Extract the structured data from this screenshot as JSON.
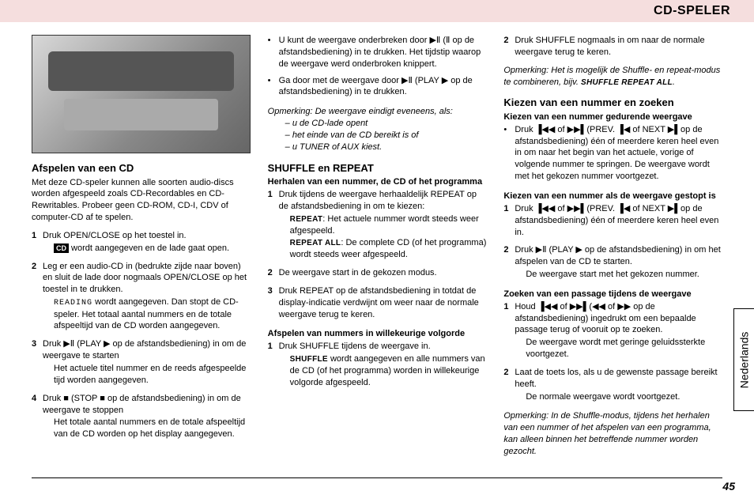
{
  "header": {
    "title": "CD-SPELER"
  },
  "lang_tab": "Nederlands",
  "page_number": "45",
  "col1": {
    "h_play": "Afspelen van een CD",
    "intro": "Met deze CD-speler kunnen alle soorten audio-discs worden afgespeeld zoals CD-Recordables en CD-Rewritables. Probeer geen CD-ROM, CD-I, CDV of computer-CD af te spelen.",
    "s1": "Druk OPEN/CLOSE op het toestel in.",
    "s1b": " wordt aangegeven en de lade gaat open.",
    "cd_badge": "CD",
    "s2": "Leg er een audio-CD in (bedrukte zijde naar boven) en sluit de lade door nogmaals OPEN/CLOSE op het toestel in te drukken.",
    "s2b_pre": "READING",
    "s2b": " wordt aangegeven. Dan stopt de CD-speler. Het totaal aantal nummers en de totale afspeeltijd van de CD worden aangegeven.",
    "s3": "Druk ▶Ⅱ (PLAY ▶ op de afstandsbediening) in om de weergave te starten",
    "s3b": "Het actuele titel nummer en de reeds afgespeelde tijd worden aangegeven.",
    "s4": "Druk ■ (STOP ■ op de afstandsbediening) in om de weergave te stoppen",
    "s4b": "Het totale aantal nummers en de totale afspeeltijd van de CD worden op het display aangegeven."
  },
  "col2": {
    "b1": "U kunt de weergave onderbreken door ▶Ⅱ (Ⅱ op de afstandsbediening) in te drukken.",
    "b1b": "Het tijdstip waarop de weergave werd onderbroken knippert.",
    "b2": "Ga door met de weergave door ▶Ⅱ (PLAY ▶ op de afstandsbediening) in te drukken.",
    "note_head": "Opmerking: De weergave eindigt eveneens, als:",
    "note_a": "– u de CD-lade opent",
    "note_b": "– het einde van de CD bereikt is of",
    "note_c": "– u TUNER of AUX kiest.",
    "h_shuffle": "SHUFFLE en REPEAT",
    "sub_repeat": "Herhalen van een nummer, de CD of het programma",
    "r1": "Druk tijdens de weergave herhaaldelijk REPEAT op de afstandsbediening in om te kiezen:",
    "r1a_key": "REPEAT",
    "r1a": ": Het actuele nummer wordt steeds weer afgespeeld.",
    "r1b_key": "REPEAT ALL",
    "r1b": ": De complete CD (of het programma) wordt steeds weer afgespeeld.",
    "r2": "De weergave start in de gekozen modus.",
    "r3": "Druk REPEAT op de afstandsbediening in totdat de display-indicatie verdwijnt om weer naar de normale weergave terug te keren.",
    "sub_random": "Afspelen van nummers in willekeurige volgorde",
    "rand1": "Druk SHUFFLE tijdens de weergave in.",
    "rand1_key": "SHUFFLE",
    "rand1b": " wordt aangegeven en alle nummers van de CD (of het programma) worden in willekeurige volgorde afgespeeld."
  },
  "col3": {
    "rand2": "Druk SHUFFLE nogmaals in om naar de normale weergave terug te keren.",
    "note_combo": "Opmerking: Het is mogelijk de Shuffle- en repeat-modus te combineren, bijv. ",
    "note_combo_key": "SHUFFLE REPEAT ALL",
    "h_select": "Kiezen van een nummer en zoeken",
    "sub_during": "Kiezen van een nummer gedurende weergave",
    "d1": "Druk ▐◀◀ of ▶▶▌(PREV. ▐◀ of NEXT ▶▌op de afstandsbediening) één of meerdere keren heel even in om naar het begin van het actuele, vorige of volgende nummer te springen.",
    "d1b": "De weergave wordt met het gekozen nummer voortgezet.",
    "sub_stopped": "Kiezen van een nummer als de weergave gestopt is",
    "st1": "Druk ▐◀◀ of ▶▶▌(PREV. ▐◀ of NEXT ▶▌op de afstandsbediening) één of meerdere keren heel even in.",
    "st2": "Druk ▶Ⅱ (PLAY ▶ op de afstandsbediening) in om het afspelen van de CD te starten.",
    "st2b": "De weergave start met het gekozen nummer.",
    "sub_search": "Zoeken van een passage tijdens de weergave",
    "se1": "Houd ▐◀◀ of ▶▶▌(◀◀ of ▶▶ op de afstandsbediening) ingedrukt om een bepaalde passage terug of vooruit op te zoeken.",
    "se1b": "De weergave wordt met geringe geluidssterkte voortgezet.",
    "se2": "Laat de toets los, als u de gewenste passage bereikt heeft.",
    "se2b": "De normale weergave wordt voortgezet.",
    "note_final": "Opmerking: In de Shuffle-modus, tijdens het herhalen van een nummer of het afspelen van een programma, kan alleen binnen het betreffende nummer worden gezocht."
  }
}
